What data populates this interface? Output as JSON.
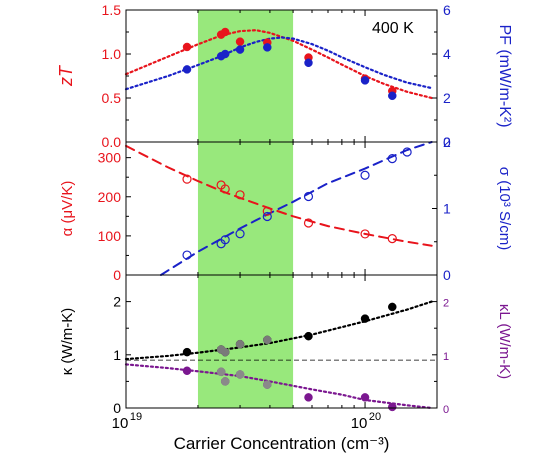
{
  "chart_data": [
    {
      "id": "top",
      "type": "scatter",
      "annotation": "400 K",
      "left_axis": {
        "label": "zT",
        "color": "#e8141c",
        "ylim": [
          0.0,
          1.5
        ],
        "ticks": [
          "0.0",
          "0.5",
          "1.0",
          "1.5"
        ]
      },
      "right_axis": {
        "label": "PF (mW/m-K²)",
        "color": "#1a22c8",
        "ylim": [
          0,
          6
        ],
        "ticks": [
          "0",
          "2",
          "4",
          "6"
        ]
      },
      "series": [
        {
          "name": "zT",
          "axis": "left",
          "marker": "filled-circle",
          "color": "#e8141c",
          "x": [
            1.8e+19,
            2.5e+19,
            2.6e+19,
            3e+19,
            3.9e+19,
            5.8e+19,
            1e+20,
            1.3e+20
          ],
          "y": [
            1.08,
            1.22,
            1.25,
            1.14,
            1.13,
            0.96,
            0.72,
            0.58
          ]
        },
        {
          "name": "PF",
          "axis": "right",
          "marker": "filled-circle",
          "color": "#1a22c8",
          "x": [
            1.8e+19,
            2.5e+19,
            2.6e+19,
            3e+19,
            3.9e+19,
            5.8e+19,
            1e+20,
            1.3e+20
          ],
          "y": [
            3.3,
            3.9,
            4.0,
            4.2,
            4.3,
            3.6,
            2.8,
            2.1
          ]
        },
        {
          "name": "zT fit",
          "axis": "left",
          "style": "dotted",
          "color": "#e8141c",
          "x": [
            1e+19,
            1.5e+19,
            2e+19,
            2.5e+19,
            3e+19,
            3.5e+19,
            4e+19,
            5e+19,
            6e+19,
            7e+19,
            8e+19,
            1e+20,
            1.2e+20,
            1.5e+20,
            1.9e+20
          ],
          "y": [
            0.77,
            0.97,
            1.11,
            1.21,
            1.26,
            1.27,
            1.24,
            1.15,
            1.05,
            0.96,
            0.88,
            0.75,
            0.66,
            0.57,
            0.5
          ]
        },
        {
          "name": "PF fit",
          "axis": "right",
          "style": "dotted",
          "color": "#1a22c8",
          "x": [
            1e+19,
            1.5e+19,
            2e+19,
            2.5e+19,
            3e+19,
            3.5e+19,
            4e+19,
            4.5e+19,
            5e+19,
            6e+19,
            7e+19,
            8e+19,
            1e+20,
            1.2e+20,
            1.5e+20,
            1.9e+20
          ],
          "y": [
            2.4,
            3.0,
            3.5,
            3.9,
            4.3,
            4.55,
            4.7,
            4.75,
            4.7,
            4.45,
            4.15,
            3.85,
            3.4,
            3.05,
            2.7,
            2.45
          ]
        }
      ]
    },
    {
      "id": "middle",
      "type": "scatter",
      "left_axis": {
        "label": "α (μV/K)",
        "color": "#e8141c",
        "ylim": [
          0,
          340
        ],
        "ticks": [
          "0",
          "100",
          "200",
          "300"
        ]
      },
      "right_axis": {
        "label": "σ (10³ S/cm)",
        "color": "#1a22c8",
        "ylim": [
          0,
          2
        ],
        "ticks": [
          "0",
          "1",
          "2"
        ]
      },
      "series": [
        {
          "name": "α",
          "axis": "left",
          "marker": "open-circle",
          "color": "#e8141c",
          "x": [
            1.8e+19,
            2.5e+19,
            2.6e+19,
            3e+19,
            3.9e+19,
            5.8e+19,
            1e+20,
            1.3e+20
          ],
          "y": [
            245,
            230,
            220,
            205,
            163,
            133,
            105,
            93
          ]
        },
        {
          "name": "σ",
          "axis": "right",
          "marker": "open-circle",
          "color": "#1a22c8",
          "x": [
            1.8e+19,
            2.5e+19,
            2.6e+19,
            3e+19,
            3.9e+19,
            5.8e+19,
            1e+20,
            1.3e+20,
            1.5e+20
          ],
          "y": [
            0.3,
            0.47,
            0.53,
            0.62,
            0.88,
            1.18,
            1.5,
            1.75,
            1.85
          ]
        },
        {
          "name": "α fit",
          "axis": "left",
          "style": "dashed",
          "color": "#e8141c",
          "x": [
            1e+19,
            1.5e+19,
            2e+19,
            2.5e+19,
            3e+19,
            4e+19,
            5e+19,
            7e+19,
            1e+20,
            1.5e+20,
            1.9e+20
          ],
          "y": [
            330,
            275,
            240,
            215,
            197,
            170,
            150,
            125,
            105,
            85,
            75
          ]
        },
        {
          "name": "σ fit",
          "axis": "right",
          "style": "dashed",
          "color": "#1a22c8",
          "x": [
            1.4e+19,
            2e+19,
            3e+19,
            4e+19,
            5e+19,
            7e+19,
            1e+20,
            1.5e+20,
            1.9e+20
          ],
          "y": [
            0.0,
            0.35,
            0.7,
            0.93,
            1.1,
            1.38,
            1.6,
            1.88,
            2.0
          ]
        }
      ]
    },
    {
      "id": "bottom",
      "type": "scatter",
      "xlabel": "Carrier Concentration (cm⁻³)",
      "xscale": "log",
      "xlim": [
        1e+19,
        2e+20
      ],
      "xticks": [
        {
          "base": "10",
          "exp": "19"
        },
        {
          "base": "10",
          "exp": "20"
        }
      ],
      "left_axis": {
        "label": "κ (W/m-K)",
        "color": "#000000",
        "ylim": [
          0,
          2.5
        ],
        "ticks": [
          "0",
          "1",
          "2"
        ]
      },
      "right_axis": {
        "label": "κL (W/m-K)",
        "color": "#7b1790",
        "ylim": [
          0,
          2.5
        ],
        "ticks": [
          "0",
          "1",
          "2"
        ]
      },
      "reference_line": {
        "y": 0.9,
        "style": "dashed",
        "color": "#000000"
      },
      "series": [
        {
          "name": "κ",
          "axis": "left",
          "marker": "filled-circle",
          "color": "#000000",
          "x": [
            1.8e+19,
            2.5e+19,
            2.6e+19,
            3e+19,
            3.9e+19,
            5.8e+19,
            1e+20,
            1.3e+20
          ],
          "y": [
            1.05,
            1.1,
            1.05,
            1.2,
            1.28,
            1.35,
            1.68,
            1.9
          ]
        },
        {
          "name": "κL",
          "axis": "right",
          "marker": "filled-circle",
          "color": "#7b1790",
          "x": [
            1.8e+19,
            2.5e+19,
            2.6e+19,
            3e+19,
            3.9e+19,
            5.8e+19,
            1e+20,
            1.3e+20
          ],
          "y": [
            0.7,
            0.68,
            0.5,
            0.63,
            0.44,
            0.2,
            0.2,
            0.02
          ]
        },
        {
          "name": "κ gray overlay",
          "axis": "left",
          "marker": "filled-circle",
          "color": "#7a7a7a",
          "x": [
            2.5e+19,
            2.6e+19,
            3e+19,
            3.9e+19
          ],
          "y": [
            1.1,
            1.05,
            1.2,
            1.28
          ]
        },
        {
          "name": "κL gray overlay",
          "axis": "right",
          "marker": "filled-circle",
          "color": "#8a8a8a",
          "x": [
            2.5e+19,
            2.6e+19,
            3e+19,
            3.9e+19
          ],
          "y": [
            0.68,
            0.5,
            0.63,
            0.44
          ]
        },
        {
          "name": "κ fit",
          "axis": "left",
          "style": "dotted",
          "color": "#000000",
          "x": [
            1e+19,
            1.5e+19,
            2e+19,
            3e+19,
            4e+19,
            6e+19,
            8e+19,
            1e+20,
            1.5e+20,
            1.9e+20
          ],
          "y": [
            0.92,
            0.98,
            1.04,
            1.14,
            1.22,
            1.38,
            1.52,
            1.63,
            1.85,
            2.0
          ]
        },
        {
          "name": "κL fit",
          "axis": "right",
          "style": "dotted",
          "color": "#7b1790",
          "x": [
            1e+19,
            1.5e+19,
            2e+19,
            3e+19,
            4e+19,
            6e+19,
            8e+19,
            1e+20,
            1.5e+20,
            1.9e+20
          ],
          "y": [
            0.82,
            0.75,
            0.69,
            0.6,
            0.5,
            0.35,
            0.25,
            0.15,
            0.05,
            0.0
          ]
        }
      ]
    }
  ],
  "highlight_band": {
    "xmin": 2e+19,
    "xmax": 5e+19,
    "color": "#98e87c"
  }
}
